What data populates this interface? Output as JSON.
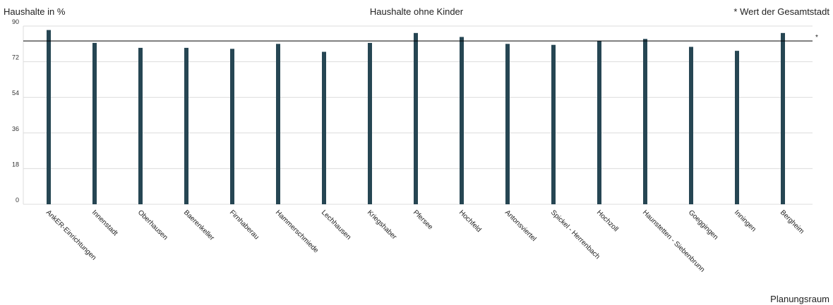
{
  "chart_data": {
    "type": "bar",
    "title": "Haushalte ohne Kinder",
    "ylabel": "Haushalte in %",
    "xlabel": "Planungsraum",
    "reference_note": "* Wert der Gesamtstadt",
    "reference_marker": "*",
    "reference_value": 82.5,
    "ylim": [
      0,
      90
    ],
    "yticks": [
      0,
      18,
      36,
      54,
      72,
      90
    ],
    "grid": true,
    "bar_color": "#264653",
    "categories": [
      "AnkER-Einrichtungen",
      "Innenstadt",
      "Oberhausen",
      "Baerenkeller",
      "Firnhaberau",
      "Hammerschmiede",
      "Lechhausen",
      "Kriegshaber",
      "Pfersee",
      "Hochfeld",
      "Antonsviertel",
      "Spickel - Herrenbach",
      "Hochzoll",
      "Haunstetten - Siebenbrunn",
      "Goeggingen",
      "Inningen",
      "Bergheim"
    ],
    "values": [
      88,
      81.5,
      79,
      79,
      78.5,
      81,
      77,
      81.5,
      86.5,
      84.5,
      81,
      80.5,
      82.5,
      83.5,
      79.5,
      77.5,
      86.5
    ]
  }
}
